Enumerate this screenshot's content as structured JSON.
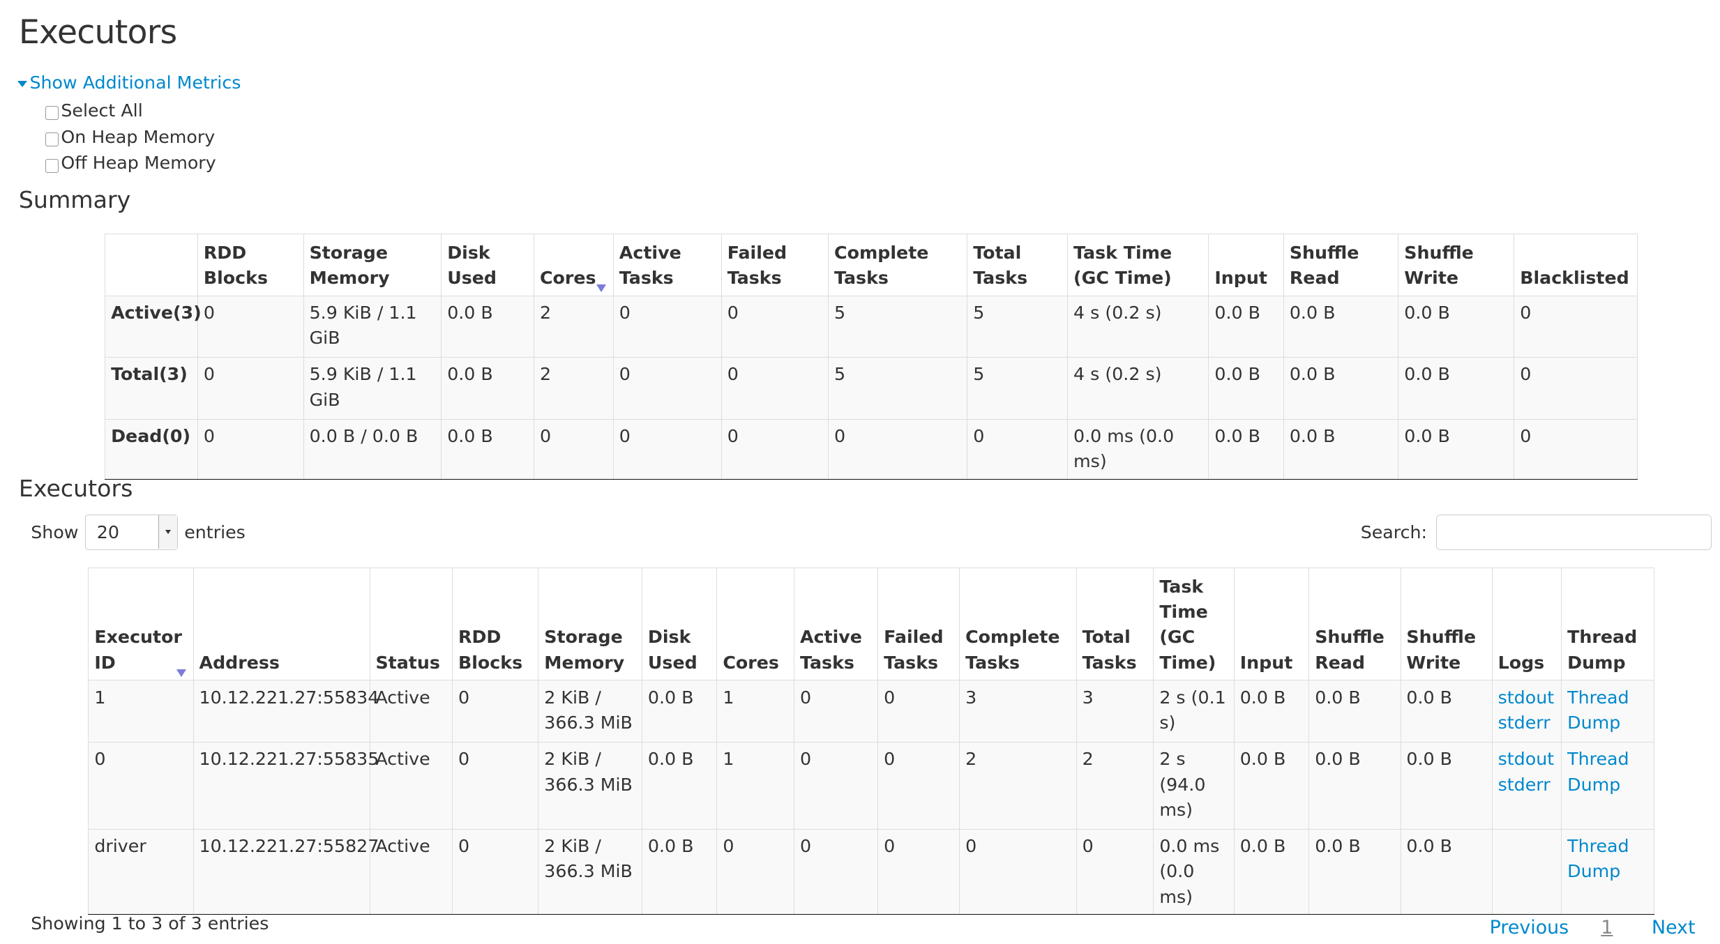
{
  "page_title": "Executors",
  "metrics": {
    "toggle_label": "Show Additional Metrics",
    "options": [
      {
        "label": "Select All",
        "checked": false
      },
      {
        "label": "On Heap Memory",
        "checked": false
      },
      {
        "label": "Off Heap Memory",
        "checked": false
      }
    ]
  },
  "summary": {
    "title": "Summary",
    "columns": [
      "",
      "RDD Blocks",
      "Storage Memory",
      "Disk Used",
      "Cores",
      "Active Tasks",
      "Failed Tasks",
      "Complete Tasks",
      "Total Tasks",
      "Task Time (GC Time)",
      "Input",
      "Shuffle Read",
      "Shuffle Write",
      "Blacklisted"
    ],
    "sorted_column": 4,
    "rows": [
      [
        "Active(3)",
        "0",
        "5.9 KiB / 1.1 GiB",
        "0.0 B",
        "2",
        "0",
        "0",
        "5",
        "5",
        "4 s (0.2 s)",
        "0.0 B",
        "0.0 B",
        "0.0 B",
        "0"
      ],
      [
        "Total(3)",
        "0",
        "5.9 KiB / 1.1 GiB",
        "0.0 B",
        "2",
        "0",
        "0",
        "5",
        "5",
        "4 s (0.2 s)",
        "0.0 B",
        "0.0 B",
        "0.0 B",
        "0"
      ],
      [
        "Dead(0)",
        "0",
        "0.0 B / 0.0 B",
        "0.0 B",
        "0",
        "0",
        "0",
        "0",
        "0",
        "0.0 ms (0.0 ms)",
        "0.0 B",
        "0.0 B",
        "0.0 B",
        "0"
      ]
    ]
  },
  "executors": {
    "title": "Executors",
    "show_label": "Show",
    "entries_value": "20",
    "entries_label": "entries",
    "search_label": "Search:",
    "search_value": "",
    "columns": [
      "Executor ID",
      "Address",
      "Status",
      "RDD Blocks",
      "Storage Memory",
      "Disk Used",
      "Cores",
      "Active Tasks",
      "Failed Tasks",
      "Complete Tasks",
      "Total Tasks",
      "Task Time (GC Time)",
      "Input",
      "Shuffle Read",
      "Shuffle Write",
      "Logs",
      "Thread Dump"
    ],
    "sorted_column": 0,
    "rows": [
      {
        "cells": [
          "1",
          "10.12.221.27:55834",
          "Active",
          "0",
          "2 KiB / 366.3 MiB",
          "0.0 B",
          "1",
          "0",
          "0",
          "3",
          "3",
          "2 s (0.1 s)",
          "0.0 B",
          "0.0 B",
          "0.0 B"
        ],
        "logs": [
          "stdout",
          "stderr"
        ],
        "thread_dump": "Thread Dump"
      },
      {
        "cells": [
          "0",
          "10.12.221.27:55835",
          "Active",
          "0",
          "2 KiB / 366.3 MiB",
          "0.0 B",
          "1",
          "0",
          "0",
          "2",
          "2",
          "2 s (94.0 ms)",
          "0.0 B",
          "0.0 B",
          "0.0 B"
        ],
        "logs": [
          "stdout",
          "stderr"
        ],
        "thread_dump": "Thread Dump"
      },
      {
        "cells": [
          "driver",
          "10.12.221.27:55827",
          "Active",
          "0",
          "2 KiB / 366.3 MiB",
          "0.0 B",
          "0",
          "0",
          "0",
          "0",
          "0",
          "0.0 ms (0.0 ms)",
          "0.0 B",
          "0.0 B",
          "0.0 B"
        ],
        "logs": [],
        "thread_dump": "Thread Dump"
      }
    ],
    "info": "Showing 1 to 3 of 3 entries",
    "pagination": {
      "previous": "Previous",
      "current": "1",
      "next": "Next"
    }
  },
  "colors": {
    "link": "#0088cc",
    "text": "#333333",
    "sort_arrow": "#7b7bdb"
  }
}
